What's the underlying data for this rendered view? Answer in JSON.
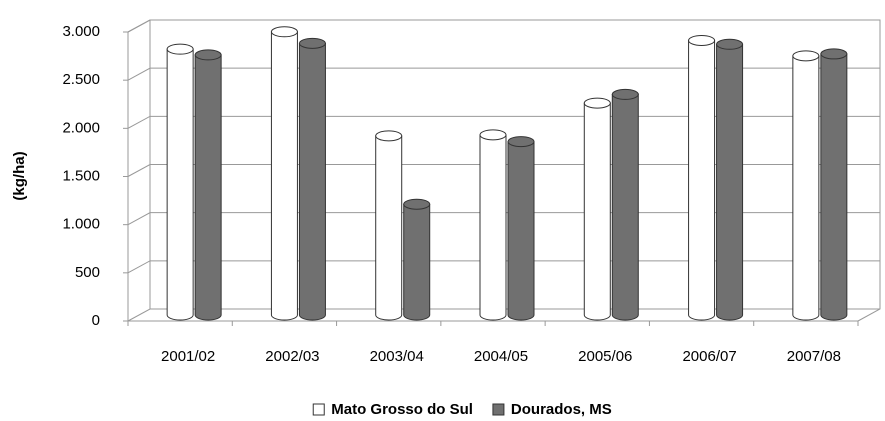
{
  "chart_data": {
    "type": "bar",
    "y_label": "(kg/ha)",
    "categories": [
      "2001/02",
      "2002/03",
      "2003/04",
      "2004/05",
      "2005/06",
      "2006/07",
      "2007/08"
    ],
    "series": [
      {
        "name": "Mato Grosso do Sul",
        "color": "#ffffff",
        "values": [
          2760,
          2940,
          1860,
          1870,
          2200,
          2850,
          2690
        ]
      },
      {
        "name": "Dourados, MS",
        "color": "#707070",
        "values": [
          2700,
          2820,
          1150,
          1800,
          2290,
          2810,
          2710
        ]
      }
    ],
    "ylim": [
      0,
      3000
    ],
    "yticks": [
      {
        "value": 0,
        "label": "0"
      },
      {
        "value": 500,
        "label": "500"
      },
      {
        "value": 1000,
        "label": "1.000"
      },
      {
        "value": 1500,
        "label": "1.500"
      },
      {
        "value": 2000,
        "label": "2.000"
      },
      {
        "value": 2500,
        "label": "2.500"
      },
      {
        "value": 3000,
        "label": "3.000"
      }
    ],
    "grid": true,
    "legend": "bottom"
  }
}
